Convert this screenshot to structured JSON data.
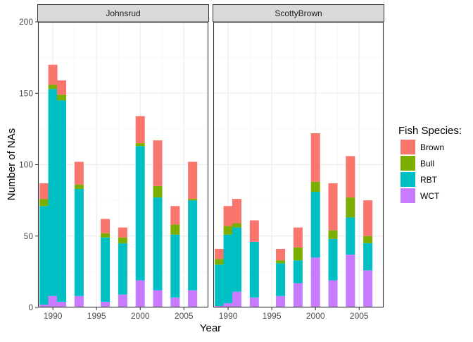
{
  "chart_data": {
    "type": "bar",
    "stacked": true,
    "facet_labels": [
      "Johnsrud",
      "ScottyBrown"
    ],
    "xlabel": "Year",
    "ylabel": "Number of NAs",
    "xlim": [
      1988.3,
      2007.8
    ],
    "ylim": [
      0,
      200
    ],
    "x_ticks": [
      1990,
      1995,
      2000,
      2005
    ],
    "y_ticks": [
      0,
      50,
      100,
      150,
      200
    ],
    "grid": true,
    "legend": {
      "title": "Fish Species:",
      "position": "right",
      "entries": [
        "Brown",
        "Bull",
        "RBT",
        "WCT"
      ]
    },
    "colors": {
      "Brown": "#F8766D",
      "Bull": "#7CAE00",
      "RBT": "#00BFC4",
      "WCT": "#C77CFF"
    },
    "stack_order": [
      "WCT",
      "RBT",
      "Bull",
      "Brown"
    ],
    "panels": [
      {
        "name": "Johnsrud",
        "years": [
          1989,
          1990,
          1991,
          1993,
          1996,
          1998,
          2000,
          2002,
          2004,
          2006
        ],
        "series": [
          {
            "name": "WCT",
            "values": [
              2,
              8,
              4,
              8,
              4,
              9,
              19,
              12,
              7,
              12
            ]
          },
          {
            "name": "RBT",
            "values": [
              69,
              145,
              141,
              75,
              45,
              36,
              94,
              65,
              44,
              63
            ]
          },
          {
            "name": "Bull",
            "values": [
              5,
              3,
              4,
              3,
              3,
              4,
              2,
              8,
              7,
              1
            ]
          },
          {
            "name": "Brown",
            "values": [
              11,
              14,
              10,
              16,
              10,
              7,
              19,
              32,
              13,
              26
            ]
          }
        ]
      },
      {
        "name": "ScottyBrown",
        "years": [
          1989,
          1990,
          1991,
          1993,
          1996,
          1998,
          2000,
          2002,
          2004,
          2006
        ],
        "series": [
          {
            "name": "WCT",
            "values": [
              1,
              3,
              11,
              7,
              8,
              17,
              35,
              19,
              37,
              26
            ]
          },
          {
            "name": "RBT",
            "values": [
              29,
              48,
              45,
              39,
              23,
              16,
              46,
              29,
              26,
              19
            ]
          },
          {
            "name": "Bull",
            "values": [
              4,
              6,
              3,
              0,
              2,
              9,
              7,
              6,
              14,
              5
            ]
          },
          {
            "name": "Brown",
            "values": [
              7,
              14,
              17,
              15,
              8,
              14,
              34,
              33,
              29,
              25
            ]
          }
        ]
      }
    ]
  }
}
